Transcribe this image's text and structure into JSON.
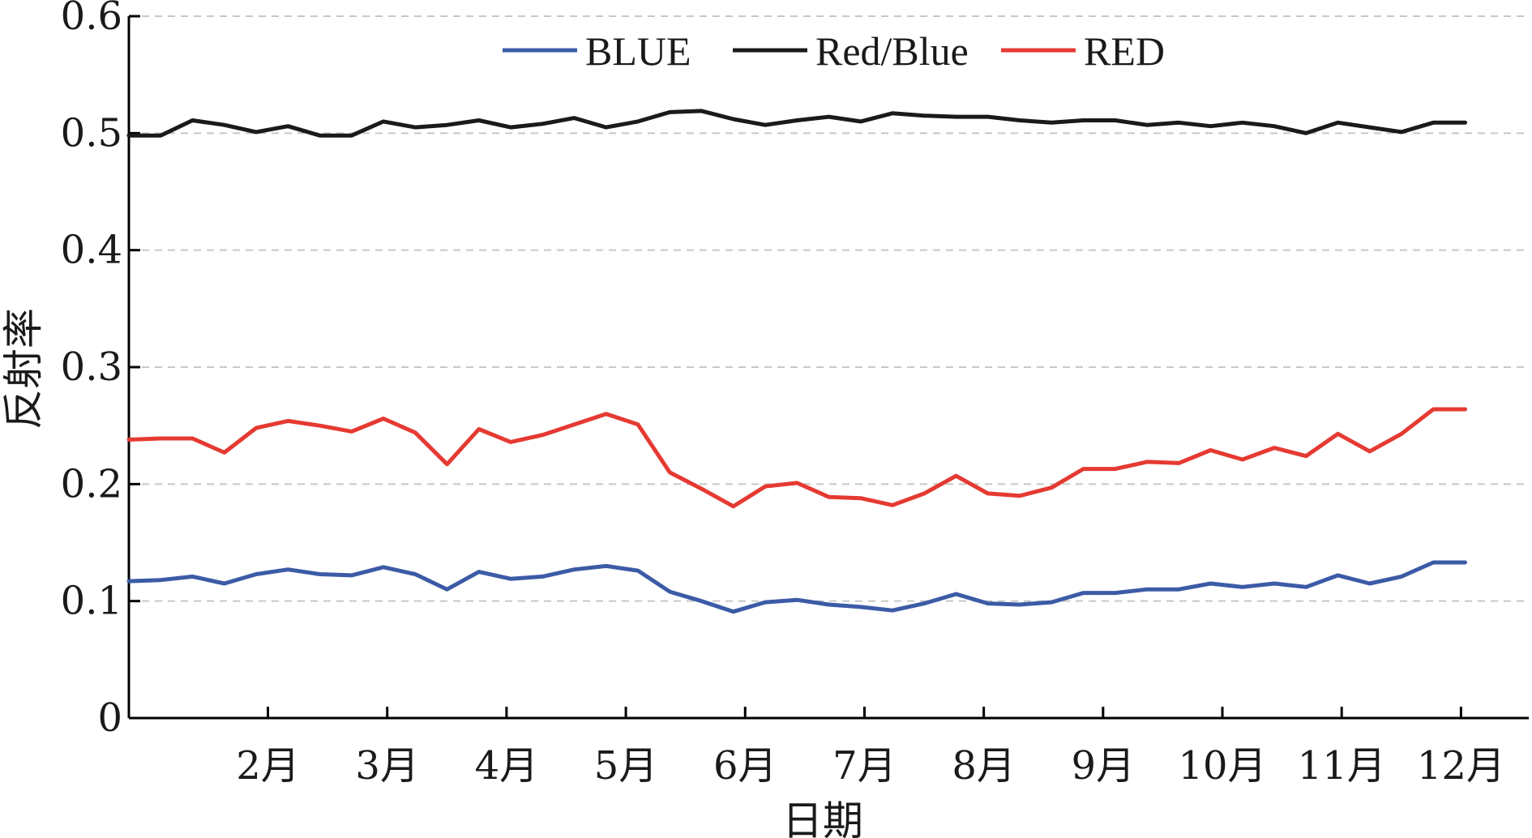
{
  "chart_data": {
    "type": "line",
    "xlabel": "日期",
    "ylabel": "反射率",
    "ylim": [
      0,
      0.6
    ],
    "yticks": [
      0,
      0.1,
      0.2,
      0.3,
      0.4,
      0.5,
      0.6
    ],
    "ytick_labels": [
      "0",
      "0.1",
      "0.2",
      "0.3",
      "0.4",
      "0.5",
      "0.6"
    ],
    "xlim": [
      0,
      44
    ],
    "xticks": [
      {
        "x": 4.37,
        "label": "2月"
      },
      {
        "x": 8.12,
        "label": "3月"
      },
      {
        "x": 11.87,
        "label": "4月"
      },
      {
        "x": 15.62,
        "label": "5月"
      },
      {
        "x": 19.37,
        "label": "6月"
      },
      {
        "x": 23.12,
        "label": "7月"
      },
      {
        "x": 26.87,
        "label": "8月"
      },
      {
        "x": 30.62,
        "label": "9月"
      },
      {
        "x": 34.37,
        "label": "10月"
      },
      {
        "x": 38.12,
        "label": "11月"
      },
      {
        "x": 41.87,
        "label": "12月"
      }
    ],
    "grid": "y-dashed",
    "legend_position": "top-center",
    "x": [
      0,
      1,
      2,
      3,
      4,
      5,
      6,
      7,
      8,
      9,
      10,
      11,
      12,
      13,
      14,
      15,
      16,
      17,
      18,
      19,
      20,
      21,
      22,
      23,
      24,
      25,
      26,
      27,
      28,
      29,
      30,
      31,
      32,
      33,
      34,
      35,
      36,
      37,
      38,
      39,
      40,
      41,
      42
    ],
    "series": [
      {
        "name": "BLUE",
        "color": "#3c5ba6",
        "values": [
          0.117,
          0.118,
          0.121,
          0.115,
          0.123,
          0.127,
          0.123,
          0.122,
          0.129,
          0.123,
          0.11,
          0.125,
          0.119,
          0.121,
          0.127,
          0.13,
          0.126,
          0.108,
          0.1,
          0.091,
          0.099,
          0.101,
          0.097,
          0.095,
          0.092,
          0.098,
          0.106,
          0.098,
          0.097,
          0.099,
          0.107,
          0.107,
          0.11,
          0.11,
          0.115,
          0.112,
          0.115,
          0.112,
          0.122,
          0.115,
          0.121,
          0.133,
          0.133
        ]
      },
      {
        "name": "Red/Blue",
        "color": "#1a1a1a",
        "values": [
          0.498,
          0.498,
          0.511,
          0.507,
          0.501,
          0.506,
          0.498,
          0.498,
          0.51,
          0.505,
          0.507,
          0.511,
          0.505,
          0.508,
          0.513,
          0.505,
          0.51,
          0.518,
          0.519,
          0.512,
          0.507,
          0.511,
          0.514,
          0.51,
          0.517,
          0.515,
          0.514,
          0.514,
          0.511,
          0.509,
          0.511,
          0.511,
          0.507,
          0.509,
          0.506,
          0.509,
          0.506,
          0.5,
          0.509,
          0.505,
          0.501,
          0.509,
          0.509
        ]
      },
      {
        "name": "RED",
        "color": "#e53a32",
        "values": [
          0.238,
          0.239,
          0.239,
          0.227,
          0.248,
          0.254,
          0.25,
          0.245,
          0.256,
          0.244,
          0.217,
          0.247,
          0.236,
          0.242,
          0.251,
          0.26,
          0.251,
          0.21,
          0.196,
          0.181,
          0.198,
          0.201,
          0.189,
          0.188,
          0.182,
          0.192,
          0.207,
          0.192,
          0.19,
          0.197,
          0.213,
          0.213,
          0.219,
          0.218,
          0.229,
          0.221,
          0.231,
          0.224,
          0.243,
          0.228,
          0.243,
          0.264,
          0.264
        ]
      }
    ]
  }
}
